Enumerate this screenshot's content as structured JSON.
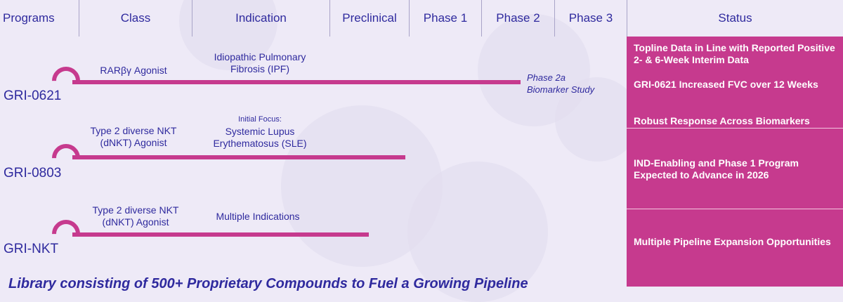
{
  "header": {
    "programs": "Programs",
    "class": "Class",
    "indication": "Indication",
    "preclinical": "Preclinical",
    "phase1": "Phase 1",
    "phase2": "Phase 2",
    "phase3": "Phase 3",
    "status": "Status"
  },
  "programs": [
    {
      "name": "GRI-0621",
      "class_lines": [
        "RARβγ Agonist"
      ],
      "indication_focus": "",
      "indication_lines": [
        "Idiopathic Pulmonary",
        "Fibrosis (IPF)"
      ],
      "stage_note_lines": [
        "Phase 2a",
        "Biomarker Study"
      ]
    },
    {
      "name": "GRI-0803",
      "class_lines": [
        "Type 2 diverse NKT",
        "(dNKT) Agonist"
      ],
      "indication_focus": "Initial Focus:",
      "indication_lines": [
        "Systemic Lupus",
        "Erythematosus (SLE)"
      ],
      "stage_note_lines": []
    },
    {
      "name": "GRI-NKT",
      "class_lines": [
        "Type 2 diverse NKT",
        "(dNKT) Agonist"
      ],
      "indication_focus": "",
      "indication_lines": [
        "Multiple Indications"
      ],
      "stage_note_lines": []
    }
  ],
  "status": {
    "gri0621": [
      "Topline Data in Line with Reported Positive 2- & 6-Week Interim Data",
      "GRI-0621 Increased FVC over 12 Weeks",
      "Robust Response Across Biomarkers"
    ],
    "gri0803": "IND-Enabling and Phase 1 Program Expected to Advance in 2026",
    "grinkt": "Multiple Pipeline Expansion Opportunities"
  },
  "footer": "Library consisting of 500+ Proprietary Compounds to Fuel a Growing Pipeline",
  "colors": {
    "accent": "#c63a8e",
    "text": "#2f2a9e",
    "background": "#eeeaf7"
  }
}
